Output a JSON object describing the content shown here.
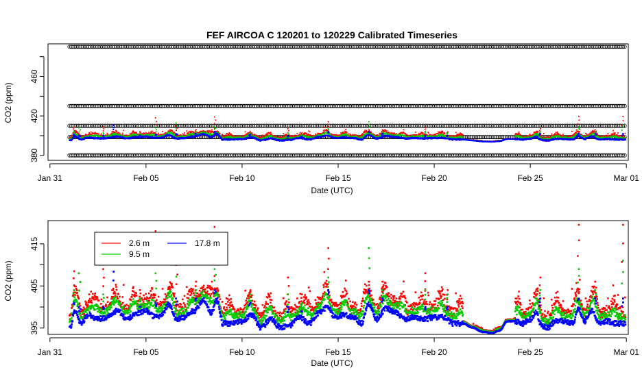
{
  "title": "FEF   AIRCOA  C    120201  to  120229   Calibrated Timeseries",
  "colors": {
    "h1": "#ff0000",
    "h2": "#00cc00",
    "h3": "#0000ff",
    "cal": "#000000"
  },
  "chart_data": [
    {
      "type": "scatter",
      "title": "FEF   AIRCOA  C    120201  to  120229   Calibrated Timeseries",
      "xlabel": "Date (UTC)",
      "ylabel": "CO2 (ppm)",
      "x_unit": "days since Jan 31 00:00 UTC",
      "xlim": [
        -0.1,
        30.1
      ],
      "ylim": [
        375,
        493
      ],
      "x_ticks": [
        {
          "v": 0,
          "label": "Jan 31"
        },
        {
          "v": 5,
          "label": "Feb 05"
        },
        {
          "v": 10,
          "label": "Feb 10"
        },
        {
          "v": 15,
          "label": "Feb 15"
        },
        {
          "v": 20,
          "label": "Feb 20"
        },
        {
          "v": 25,
          "label": "Feb 25"
        },
        {
          "v": 30,
          "label": "Mar 01"
        }
      ],
      "y_ticks": [
        380,
        420,
        460
      ],
      "y_minor_ticks": [
        400,
        440,
        480
      ],
      "calibration_levels": [
        380,
        398.5,
        410,
        430,
        490
      ],
      "x_range": [
        1.02,
        29.95
      ],
      "series": [
        {
          "name": "2.6 m",
          "color": "#ff0000"
        },
        {
          "name": "9.5 m",
          "color": "#00cc00"
        },
        {
          "name": "17.8 m",
          "color": "#0000ff"
        }
      ]
    },
    {
      "type": "scatter",
      "xlabel": "Date (UTC)",
      "ylabel": "CO2 (ppm)",
      "x_unit": "days since Jan 31 00:00 UTC",
      "xlim": [
        -0.1,
        30.1
      ],
      "ylim": [
        393.5,
        420.5
      ],
      "x_ticks": [
        {
          "v": 0,
          "label": "Jan 31"
        },
        {
          "v": 5,
          "label": "Feb 05"
        },
        {
          "v": 10,
          "label": "Feb 10"
        },
        {
          "v": 15,
          "label": "Feb 15"
        },
        {
          "v": 20,
          "label": "Feb 20"
        },
        {
          "v": 25,
          "label": "Feb 25"
        },
        {
          "v": 30,
          "label": "Mar 01"
        }
      ],
      "y_ticks": [
        395,
        405,
        415
      ],
      "y_minor_ticks": [
        400,
        410
      ],
      "legend": {
        "position": "top-left",
        "entries": [
          {
            "label": "2.6 m",
            "color": "#ff0000",
            "col": 0,
            "row": 0
          },
          {
            "label": "9.5 m",
            "color": "#00cc00",
            "col": 0,
            "row": 1
          },
          {
            "label": "17.8 m",
            "color": "#0000ff",
            "col": 1,
            "row": 0
          }
        ]
      },
      "baseline_keypoints": [
        [
          1.05,
          396.5
        ],
        [
          1.3,
          400.5
        ],
        [
          1.6,
          397.5
        ],
        [
          2.0,
          399.5
        ],
        [
          2.5,
          398.5
        ],
        [
          3.0,
          399
        ],
        [
          3.5,
          400.5
        ],
        [
          4.0,
          398.5
        ],
        [
          4.5,
          400
        ],
        [
          5.0,
          400.5
        ],
        [
          5.5,
          399
        ],
        [
          5.8,
          399.5
        ],
        [
          6.2,
          402
        ],
        [
          6.6,
          398.5
        ],
        [
          7.0,
          399
        ],
        [
          7.5,
          400.5
        ],
        [
          8.0,
          403
        ],
        [
          8.4,
          400
        ],
        [
          8.7,
          403
        ],
        [
          9.0,
          397.5
        ],
        [
          9.5,
          397.5
        ],
        [
          10.0,
          398
        ],
        [
          10.5,
          399.5
        ],
        [
          11.0,
          396.5
        ],
        [
          11.5,
          398.5
        ],
        [
          12.0,
          396.5
        ],
        [
          12.5,
          397
        ],
        [
          13.0,
          399
        ],
        [
          13.5,
          397.5
        ],
        [
          14.0,
          400
        ],
        [
          14.5,
          401.5
        ],
        [
          14.8,
          399
        ],
        [
          15.3,
          399.5
        ],
        [
          15.8,
          399
        ],
        [
          16.2,
          397.5
        ],
        [
          16.6,
          402
        ],
        [
          17.0,
          398.5
        ],
        [
          17.5,
          401
        ],
        [
          18.0,
          400
        ],
        [
          18.5,
          398.5
        ],
        [
          19.0,
          399
        ],
        [
          19.5,
          398.5
        ],
        [
          20.0,
          399
        ],
        [
          20.5,
          399
        ],
        [
          21.0,
          397.5
        ],
        [
          21.5,
          397.5
        ],
        [
          22.0,
          396.5
        ],
        [
          22.5,
          395.5
        ],
        [
          23.0,
          395.2
        ],
        [
          23.4,
          395.8
        ],
        [
          23.8,
          398
        ],
        [
          24.2,
          398
        ],
        [
          24.6,
          397.5
        ],
        [
          25.0,
          398.5
        ],
        [
          25.3,
          400
        ],
        [
          25.6,
          397
        ],
        [
          25.9,
          396.5
        ],
        [
          26.3,
          398
        ],
        [
          26.8,
          398
        ],
        [
          27.2,
          397.5
        ],
        [
          27.5,
          401
        ],
        [
          27.8,
          398
        ],
        [
          28.2,
          400.5
        ],
        [
          28.6,
          397.5
        ],
        [
          29.0,
          398
        ],
        [
          29.5,
          397.5
        ],
        [
          29.95,
          397.5
        ]
      ],
      "spikes": [
        {
          "x": 1.25,
          "h1": 408.5,
          "h2": 404,
          "h3": 401
        },
        {
          "x": 1.55,
          "h1": 408,
          "h2": 408,
          "h3": 400
        },
        {
          "x": 2.8,
          "h1": 409,
          "h2": 403,
          "h3": 400
        },
        {
          "x": 3.3,
          "h1": 404,
          "h2": 402,
          "h3": 410.5
        },
        {
          "x": 4.7,
          "h1": 404,
          "h2": 402,
          "h3": 400
        },
        {
          "x": 5.5,
          "h1": 418,
          "h2": 408,
          "h3": 401
        },
        {
          "x": 6.6,
          "h1": 410,
          "h2": 413,
          "h3": 402
        },
        {
          "x": 7.6,
          "h1": 406,
          "h2": 404,
          "h3": 402
        },
        {
          "x": 8.6,
          "h1": 419,
          "h2": 409,
          "h3": 404
        },
        {
          "x": 10.4,
          "h1": 404,
          "h2": 403,
          "h3": 401
        },
        {
          "x": 12.4,
          "h1": 407,
          "h2": 403,
          "h3": 400
        },
        {
          "x": 13.1,
          "h1": 403,
          "h2": 401,
          "h3": 399
        },
        {
          "x": 14.5,
          "h1": 414,
          "h2": 407,
          "h3": 404
        },
        {
          "x": 16.6,
          "h1": 406,
          "h2": 414,
          "h3": 404
        },
        {
          "x": 17.3,
          "h1": 406,
          "h2": 404,
          "h3": 402
        },
        {
          "x": 19.5,
          "h1": 408,
          "h2": 404,
          "h3": 400
        },
        {
          "x": 20.7,
          "h1": 404,
          "h2": 403,
          "h3": 400
        },
        {
          "x": 25.5,
          "h1": 407,
          "h2": 404,
          "h3": 402
        },
        {
          "x": 27.5,
          "h1": 419.5,
          "h2": 409,
          "h3": 402
        },
        {
          "x": 28.4,
          "h1": 406,
          "h2": 404,
          "h3": 402
        },
        {
          "x": 29.8,
          "h1": 419.5,
          "h2": 411,
          "h3": 402
        }
      ]
    }
  ]
}
